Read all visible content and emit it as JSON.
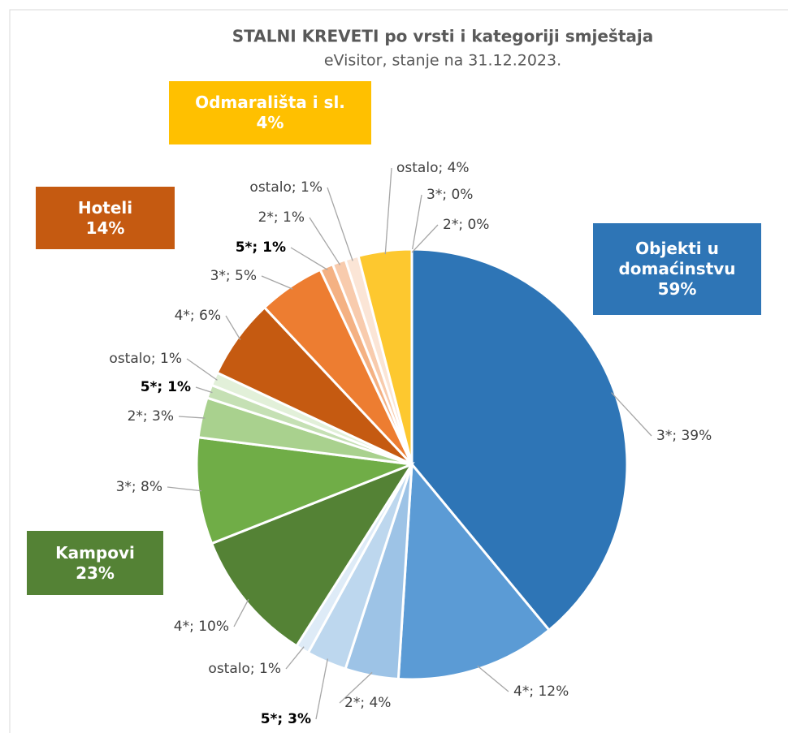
{
  "chart_data": {
    "type": "pie",
    "title": "STALNI KREVETI po vrsti i kategoriji smještaja",
    "subtitle": "eVisitor, stanje na 31.12.2023.",
    "values": [
      39,
      12,
      4,
      3,
      1,
      10,
      8,
      3,
      1,
      1,
      6,
      5,
      1,
      1,
      1,
      4,
      0,
      0
    ],
    "value_labels": [
      "3*; 39%",
      "4*; 12%",
      "2*; 4%",
      "5*; 3%",
      "ostalo; 1%",
      "4*; 10%",
      "3*; 8%",
      "2*; 3%",
      "5*; 1%",
      "ostalo; 1%",
      "4*; 6%",
      "3*; 5%",
      "5*; 1%",
      "2*; 1%",
      "ostalo; 1%",
      "ostalo; 4%",
      "3*; 0%",
      "2*; 0%"
    ],
    "bold_labels": [
      false,
      false,
      false,
      true,
      false,
      false,
      false,
      false,
      true,
      false,
      false,
      false,
      true,
      false,
      false,
      false,
      false,
      false
    ],
    "colors": [
      "#2e75b6",
      "#5b9bd5",
      "#9dc3e6",
      "#bdd7ee",
      "#deebf7",
      "#548235",
      "#70ad47",
      "#a9d18e",
      "#c5e0b4",
      "#e2f0d9",
      "#c55a11",
      "#ed7d31",
      "#f4b183",
      "#f8cbad",
      "#fbe5d6",
      "#fdc82f",
      "#fedf86",
      "#fff0c4"
    ],
    "groups": {
      "names": [
        "Objekti u domaćinstvu",
        "Kampovi",
        "Hoteli",
        "Odmarališta i sl."
      ],
      "values": [
        59,
        23,
        14,
        4
      ],
      "value_labels": [
        "59%",
        "23%",
        "14%",
        "4%"
      ],
      "colors": [
        "#2e75b6",
        "#548235",
        "#c55a11",
        "#ffc000"
      ]
    }
  }
}
